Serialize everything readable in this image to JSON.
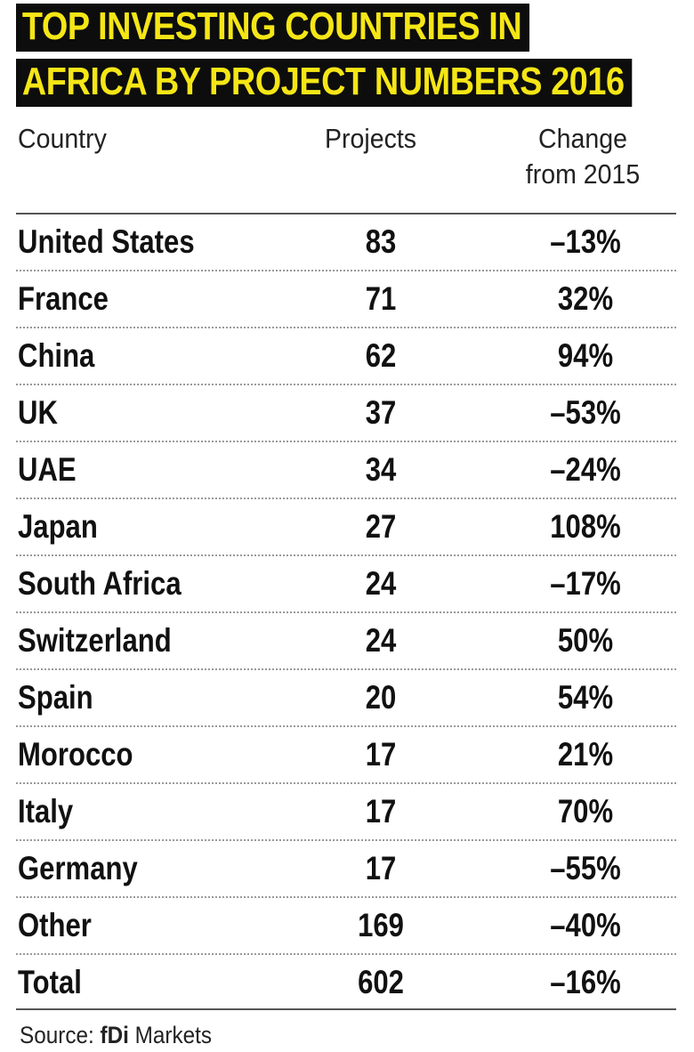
{
  "chart_data": {
    "type": "table",
    "title_lines": [
      "TOP INVESTING COUNTRIES IN",
      "AFRICA BY PROJECT NUMBERS 2016"
    ],
    "columns": {
      "country": "Country",
      "projects": "Projects",
      "change_line1": "Change",
      "change_line2": "from 2015"
    },
    "rows": [
      {
        "country": "United States",
        "projects": "83",
        "change": "–13%"
      },
      {
        "country": "France",
        "projects": "71",
        "change": "32%"
      },
      {
        "country": "China",
        "projects": "62",
        "change": "94%"
      },
      {
        "country": "UK",
        "projects": "37",
        "change": "–53%"
      },
      {
        "country": "UAE",
        "projects": "34",
        "change": "–24%"
      },
      {
        "country": "Japan",
        "projects": "27",
        "change": "108%"
      },
      {
        "country": "South Africa",
        "projects": "24",
        "change": "–17%"
      },
      {
        "country": "Switzerland",
        "projects": "24",
        "change": "50%"
      },
      {
        "country": "Spain",
        "projects": "20",
        "change": "54%"
      },
      {
        "country": "Morocco",
        "projects": "17",
        "change": "21%"
      },
      {
        "country": "Italy",
        "projects": "17",
        "change": "70%"
      },
      {
        "country": "Germany",
        "projects": "17",
        "change": "–55%"
      },
      {
        "country": "Other",
        "projects": "169",
        "change": "–40%"
      },
      {
        "country": "Total",
        "projects": "602",
        "change": "–16%"
      }
    ],
    "source_prefix": "Source: ",
    "source_bold": "fDi",
    "source_suffix": " Markets"
  },
  "colors": {
    "title_background": "#0d0d0d",
    "title_text": "#f5e616",
    "text": "#111111"
  }
}
